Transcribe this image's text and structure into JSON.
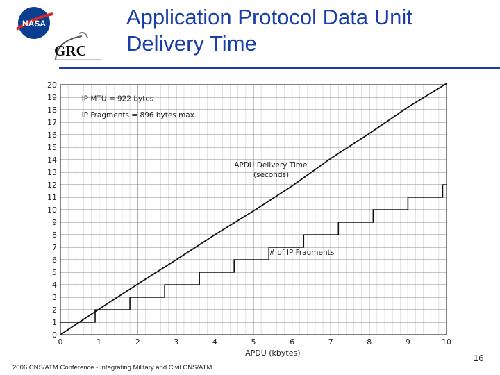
{
  "slide": {
    "title_line1": "Application Protocol Data Unit",
    "title_line2": "Delivery Time",
    "footer": "2006 CNS/ATM Conference - Integrating Military and Civil CNS/ATM",
    "page_number": "16",
    "logos": {
      "nasa_text": "NASA",
      "grc_text": "GRC"
    },
    "colors": {
      "title": "#1a3ea8",
      "rule": "#1a3ea8",
      "nasa_blue": "#0b3d91",
      "nasa_red": "#d62828"
    }
  },
  "chart_data": {
    "type": "line",
    "xlabel": "APDU (kbytes)",
    "ylabel": "",
    "xlim": [
      0,
      10
    ],
    "ylim": [
      0,
      20
    ],
    "x_ticks": [
      "0",
      "1",
      "2",
      "3",
      "4",
      "5",
      "6",
      "7",
      "8",
      "9",
      "10"
    ],
    "y_ticks": [
      "0",
      "1",
      "2",
      "3",
      "4",
      "5",
      "6",
      "7",
      "8",
      "9",
      "10",
      "11",
      "12",
      "13",
      "14",
      "15",
      "16",
      "17",
      "18",
      "19",
      "20"
    ],
    "grid": true,
    "annotations": [
      {
        "text": "IP MTU = 922 bytes",
        "x": 0.55,
        "y": 18.7
      },
      {
        "text": "IP Fragments = 896 bytes max.",
        "x": 0.55,
        "y": 17.4
      },
      {
        "text": "APDU Delivery Time",
        "x": 4.5,
        "y": 13.4
      },
      {
        "text": "(seconds)",
        "x": 5.0,
        "y": 12.6
      },
      {
        "text": "# of IP Fragments",
        "x": 5.4,
        "y": 6.4
      }
    ],
    "series": [
      {
        "name": "APDU Delivery Time (seconds)",
        "x": [
          0,
          1,
          2,
          3,
          4,
          5,
          6,
          7,
          8,
          9,
          10
        ],
        "y": [
          0,
          2.05,
          4.05,
          6.0,
          8.0,
          9.9,
          11.9,
          14.1,
          16.1,
          18.2,
          20.1
        ]
      },
      {
        "name": "# of IP Fragments",
        "step": true,
        "x": [
          0,
          0.9,
          1.8,
          2.7,
          3.6,
          4.5,
          5.4,
          6.3,
          7.2,
          8.1,
          9.0,
          9.9,
          10.0
        ],
        "y": [
          1,
          2,
          3,
          4,
          5,
          6,
          7,
          8,
          9,
          10,
          11,
          12,
          12
        ]
      }
    ]
  }
}
